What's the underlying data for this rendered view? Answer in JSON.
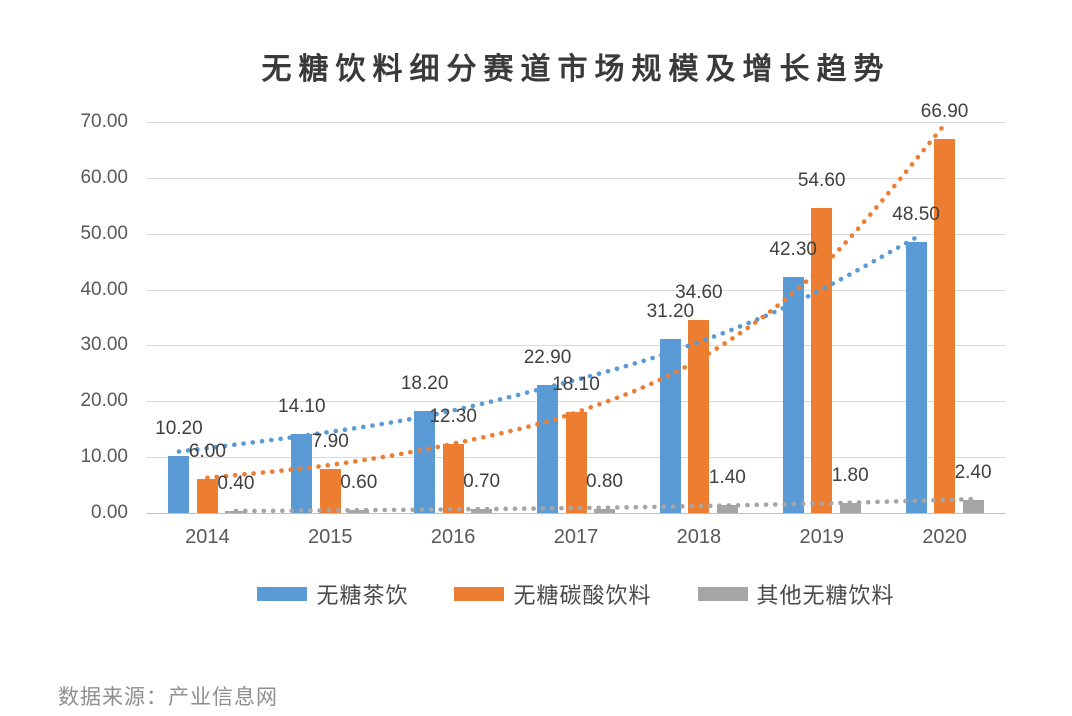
{
  "title": "无糖饮料细分赛道市场规模及增长趋势",
  "source": "数据来源：产业信息网",
  "chart_data": {
    "type": "bar",
    "title": "无糖饮料细分赛道市场规模及增长趋势",
    "categories": [
      "2014",
      "2015",
      "2016",
      "2017",
      "2018",
      "2019",
      "2020"
    ],
    "series": [
      {
        "name": "无糖茶饮",
        "color": "#5B9BD5",
        "values": [
          10.2,
          14.1,
          18.2,
          22.9,
          31.2,
          42.3,
          48.5
        ],
        "value_labels": [
          "10.20",
          "14.10",
          "18.20",
          "22.90",
          "31.20",
          "42.30",
          "48.50"
        ],
        "trend": [
          11.0,
          13.8,
          17.3,
          22.5,
          28.8,
          37.5,
          49.3
        ]
      },
      {
        "name": "无糖碳酸饮料",
        "color": "#ED7D31",
        "values": [
          6.0,
          7.9,
          12.3,
          18.1,
          34.6,
          54.6,
          66.9
        ],
        "value_labels": [
          "6.00",
          "7.90",
          "12.30",
          "18.10",
          "34.60",
          "54.60",
          "66.90"
        ],
        "trend": [
          6.3,
          8.6,
          12.4,
          18.0,
          27.5,
          44.0,
          69.5
        ]
      },
      {
        "name": "其他无糖饮料",
        "color": "#A5A5A5",
        "values": [
          0.4,
          0.6,
          0.7,
          0.8,
          1.4,
          1.8,
          2.4
        ],
        "value_labels": [
          "0.40",
          "0.60",
          "0.70",
          "0.80",
          "1.40",
          "1.80",
          "2.40"
        ],
        "trend": [
          0.35,
          0.5,
          0.7,
          0.95,
          1.35,
          1.85,
          2.5
        ]
      }
    ],
    "ylim": [
      0,
      70
    ],
    "ytick_step": 10,
    "ytick_labels": [
      "0.00",
      "10.00",
      "20.00",
      "30.00",
      "40.00",
      "50.00",
      "60.00",
      "70.00"
    ],
    "grid": true,
    "legend_position": "bottom",
    "trendline_style": "dotted"
  },
  "colors": {
    "background": "#FFFFFF",
    "grid": "#D9D9D9",
    "axis_line": "#BFBFBF",
    "tick_text": "#595959",
    "value_label_text": "#404040",
    "legend_text": "#4A4A4A",
    "title_text": "#3A3A3A",
    "source_text": "#8F8F8F"
  }
}
